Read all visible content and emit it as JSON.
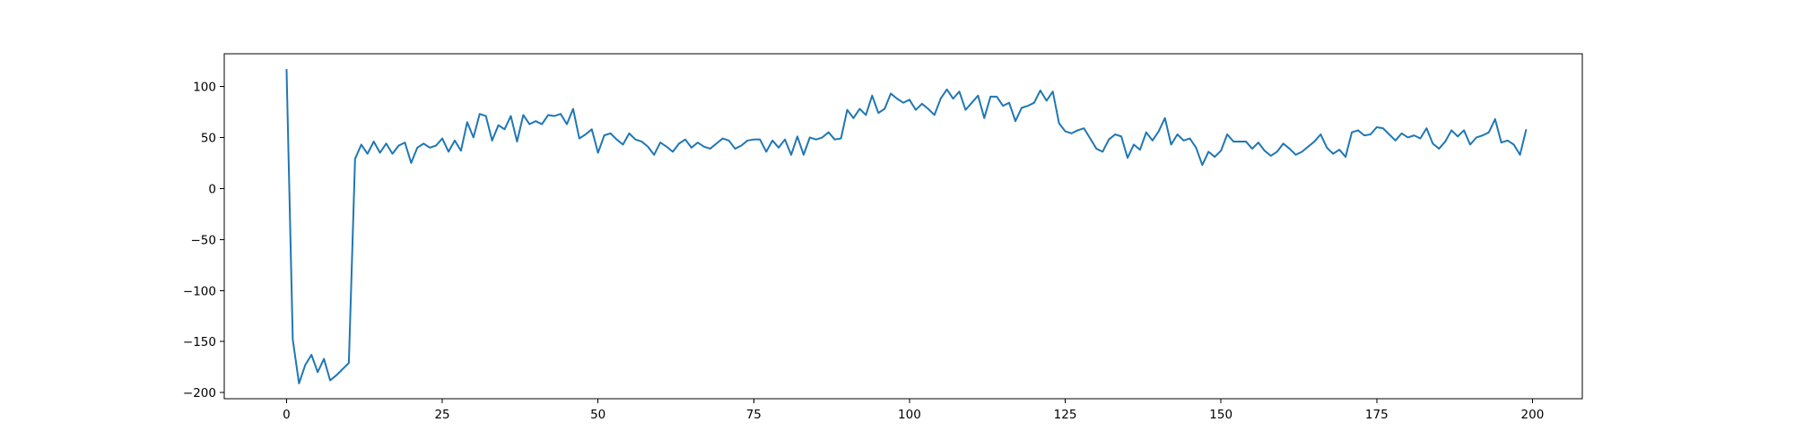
{
  "chart_data": {
    "type": "line",
    "title": "",
    "xlabel": "",
    "ylabel": "",
    "xlim": [
      -10,
      208
    ],
    "ylim": [
      -206,
      132
    ],
    "grid": false,
    "legend": "none",
    "x_ticks": [
      0,
      25,
      50,
      75,
      100,
      125,
      150,
      175,
      200
    ],
    "y_ticks": [
      -200,
      -150,
      -100,
      -50,
      0,
      50,
      100
    ],
    "series": [
      {
        "color": "#1f77b4",
        "x_start": 0,
        "x_step": 1,
        "values": [
          117,
          -148,
          -191,
          -173,
          -163,
          -180,
          -167,
          -188,
          -183,
          -177,
          -171,
          29,
          43,
          34,
          46,
          35,
          44,
          34,
          42,
          45,
          25,
          40,
          44,
          40,
          42,
          49,
          36,
          47,
          37,
          65,
          50,
          73,
          71,
          47,
          62,
          58,
          71,
          46,
          72,
          63,
          66,
          63,
          72,
          71,
          73,
          63,
          78,
          49,
          53,
          58,
          35,
          52,
          54,
          48,
          43,
          54,
          48,
          46,
          41,
          33,
          45,
          41,
          36,
          44,
          48,
          40,
          45,
          41,
          39,
          44,
          49,
          47,
          39,
          42,
          47,
          48,
          48,
          36,
          47,
          40,
          48,
          33,
          51,
          33,
          50,
          48,
          50,
          55,
          48,
          49,
          77,
          69,
          78,
          72,
          91,
          74,
          78,
          93,
          88,
          84,
          87,
          77,
          83,
          78,
          72,
          88,
          97,
          88,
          95,
          77,
          84,
          91,
          69,
          90,
          90,
          81,
          84,
          66,
          79,
          81,
          84,
          96,
          86,
          95,
          64,
          56,
          54,
          57,
          59,
          49,
          39,
          36,
          48,
          53,
          51,
          30,
          43,
          38,
          55,
          47,
          56,
          69,
          43,
          53,
          47,
          49,
          40,
          23,
          36,
          31,
          37,
          53,
          46,
          46,
          46,
          39,
          45,
          37,
          32,
          36,
          44,
          39,
          33,
          36,
          41,
          46,
          53,
          40,
          34,
          38,
          31,
          55,
          57,
          52,
          53,
          60,
          59,
          53,
          47,
          54,
          50,
          52,
          49,
          59,
          44,
          39,
          46,
          57,
          51,
          57,
          43,
          50,
          52,
          55,
          68,
          45,
          47,
          43,
          33,
          58
        ]
      }
    ]
  }
}
